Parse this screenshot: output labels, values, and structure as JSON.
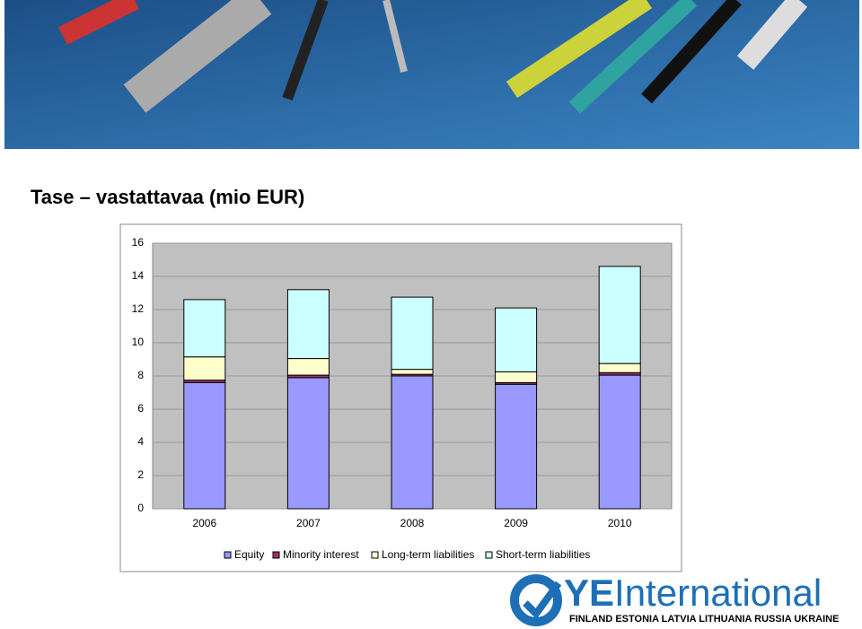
{
  "chart_data": {
    "type": "stacked_bar",
    "title": "Tase – vastattavaa (mio EUR)",
    "categories": [
      "2006",
      "2007",
      "2008",
      "2009",
      "2010"
    ],
    "series": [
      {
        "name": "Equity",
        "color": "#9999ff",
        "values": [
          7.6,
          7.9,
          8.0,
          7.5,
          8.05
        ]
      },
      {
        "name": "Minority interest",
        "color": "#993366",
        "values": [
          0.15,
          0.15,
          0.1,
          0.1,
          0.15
        ]
      },
      {
        "name": "Long-term liabilities",
        "color": "#ffffcc",
        "values": [
          1.4,
          1.0,
          0.3,
          0.65,
          0.55
        ]
      },
      {
        "name": "Short-term liabilities",
        "color": "#ccffff",
        "values": [
          3.45,
          4.15,
          4.35,
          3.85,
          5.85
        ]
      }
    ],
    "ylim": [
      0,
      16
    ],
    "yticks": [
      0,
      2,
      4,
      6,
      8,
      10,
      12,
      14,
      16
    ],
    "grid": true,
    "legend": "bottom"
  },
  "logo": {
    "brand_prefix": "YE",
    "brand_suffix": "International",
    "countries": "FINLAND ESTONIA LATVIA LITHUANIA RUSSIA UKRAINE"
  }
}
